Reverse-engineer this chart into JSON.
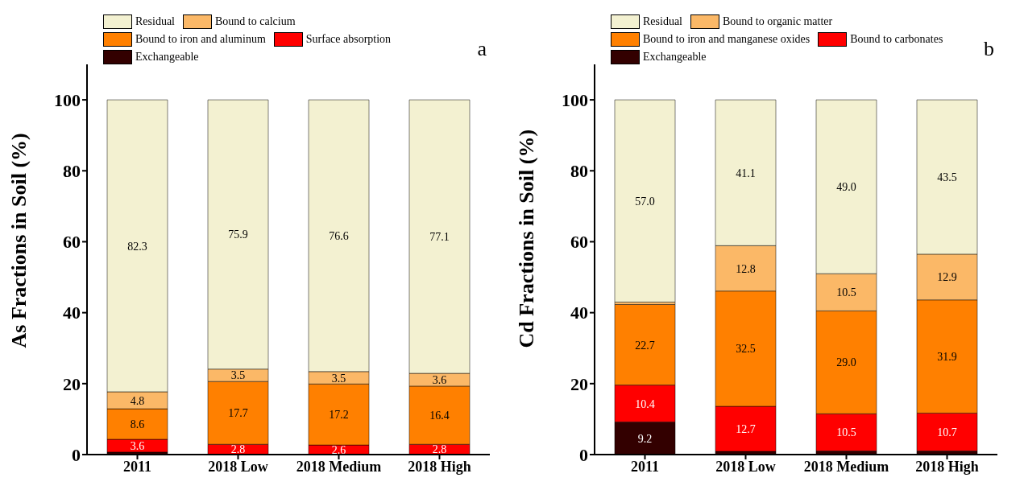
{
  "chart_data": [
    {
      "type": "bar",
      "stacked": true,
      "ylabel": "As Fractions in Soil (%)",
      "categories": [
        "2011",
        "2018 Low",
        "2018 Medium",
        "2018 High"
      ],
      "ylim": [
        0,
        110
      ],
      "yticks": [
        0,
        20,
        40,
        60,
        80,
        100
      ],
      "legend": "top",
      "annotations": [
        "a"
      ],
      "series": [
        {
          "name": "Exchangeable",
          "color": "#330000",
          "values": [
            0.7,
            0.1,
            0.1,
            0.1
          ],
          "value_labels": [
            null,
            null,
            null,
            null
          ]
        },
        {
          "name": "Surface absorption",
          "color": "#ff0000",
          "values": [
            3.6,
            2.8,
            2.6,
            2.8
          ],
          "value_labels": [
            "3.6",
            "2.8",
            "2.6",
            "2.8"
          ]
        },
        {
          "name": "Bound to iron and aluminum",
          "color": "#ff8000",
          "values": [
            8.6,
            17.7,
            17.2,
            16.4
          ],
          "value_labels": [
            "8.6",
            "17.7",
            "17.2",
            "16.4"
          ]
        },
        {
          "name": "Bound to calcium",
          "color": "#fbb867",
          "values": [
            4.8,
            3.5,
            3.5,
            3.6
          ],
          "value_labels": [
            "4.8",
            "3.5",
            "3.5",
            "3.6"
          ]
        },
        {
          "name": "Residual",
          "color": "#f3f1d1",
          "values": [
            82.3,
            75.9,
            76.6,
            77.1
          ],
          "value_labels": [
            "82.3",
            "75.9",
            "76.6",
            "77.1"
          ]
        }
      ]
    },
    {
      "type": "bar",
      "stacked": true,
      "ylabel": "Cd Fractions in Soil (%)",
      "categories": [
        "2011",
        "2018 Low",
        "2018 Medium",
        "2018 High"
      ],
      "ylim": [
        0,
        110
      ],
      "yticks": [
        0,
        20,
        40,
        60,
        80,
        100
      ],
      "legend": "top",
      "annotations": [
        "b"
      ],
      "series": [
        {
          "name": "Exchangeable",
          "color": "#330000",
          "values": [
            9.2,
            0.9,
            1.0,
            1.0
          ],
          "value_labels": [
            "9.2",
            null,
            null,
            null
          ]
        },
        {
          "name": "Bound to carbonates",
          "color": "#ff0000",
          "values": [
            10.4,
            12.7,
            10.5,
            10.7
          ],
          "value_labels": [
            "10.4",
            "12.7",
            "10.5",
            "10.7"
          ]
        },
        {
          "name": "Bound to iron and manganese oxides",
          "color": "#ff8000",
          "values": [
            22.7,
            32.5,
            29.0,
            31.9
          ],
          "value_labels": [
            "22.7",
            "32.5",
            "29.0",
            "31.9"
          ]
        },
        {
          "name": "Bound to organic matter",
          "color": "#fbb867",
          "values": [
            0.7,
            12.8,
            10.5,
            12.9
          ],
          "value_labels": [
            null,
            "12.8",
            "10.5",
            "12.9"
          ]
        },
        {
          "name": "Residual",
          "color": "#f3f1d1",
          "values": [
            57.0,
            41.1,
            49.0,
            43.5
          ],
          "value_labels": [
            "57.0",
            "41.1",
            "49.0",
            "43.5"
          ]
        }
      ]
    }
  ]
}
